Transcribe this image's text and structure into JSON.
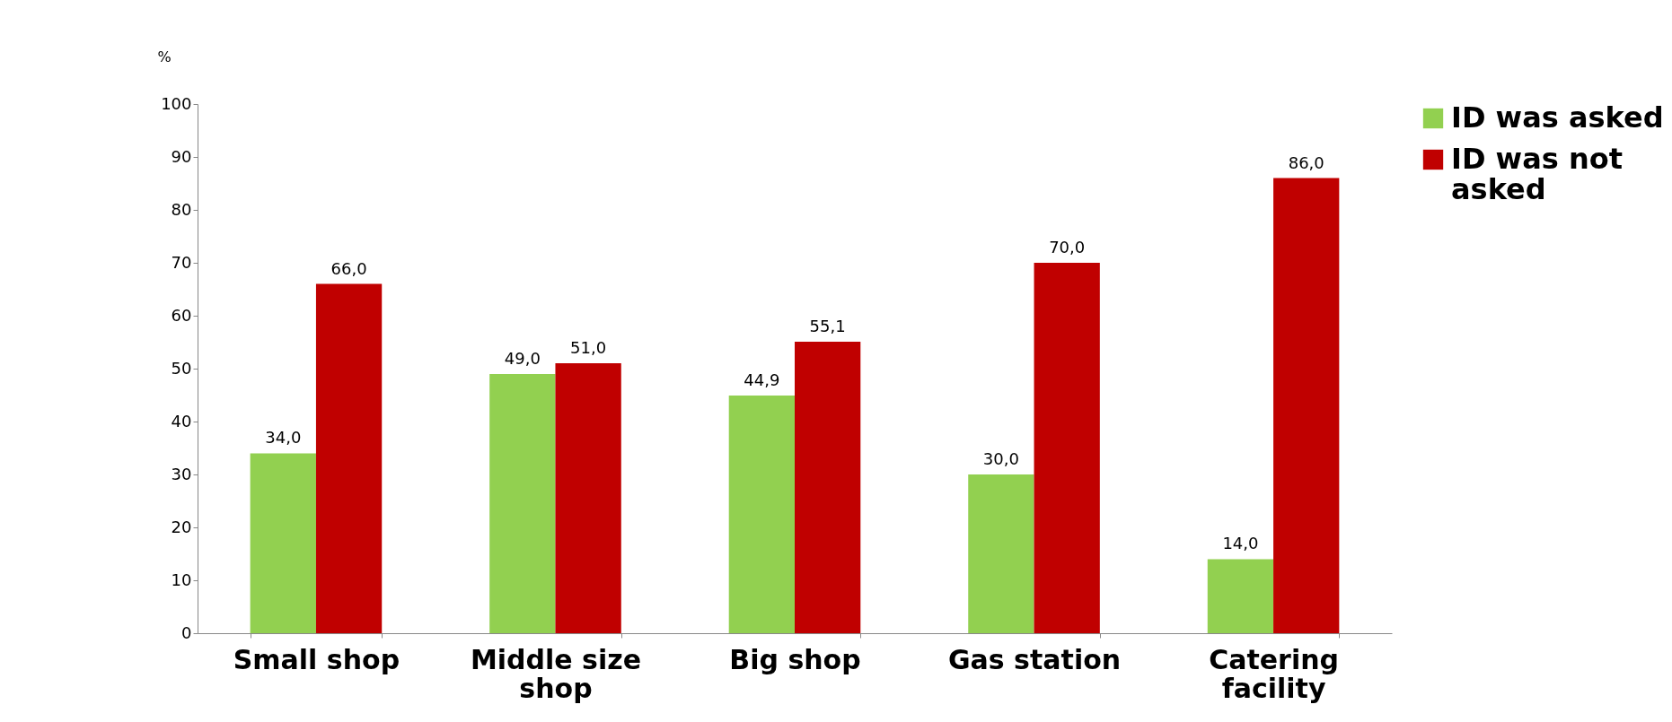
{
  "chart_data": {
    "type": "bar",
    "ylabel": "%",
    "categories": [
      "Small shop",
      "Middle size shop",
      "Big shop",
      "Gas station",
      "Catering facility"
    ],
    "series": [
      {
        "name": "ID was asked",
        "color": "#92d050",
        "values": [
          34.0,
          49.0,
          44.9,
          30.0,
          14.0
        ],
        "value_labels": [
          "34,0",
          "49,0",
          "44,9",
          "30,0",
          "14,0"
        ]
      },
      {
        "name": "ID was not asked",
        "color": "#c00000",
        "values": [
          66.0,
          51.0,
          55.1,
          70.0,
          86.0
        ],
        "value_labels": [
          "66,0",
          "51,0",
          "55,1",
          "70,0",
          "86,0"
        ]
      }
    ],
    "ylim": [
      0,
      100
    ],
    "yticks": [
      0,
      10,
      20,
      30,
      40,
      50,
      60,
      70,
      80,
      90,
      100
    ],
    "grid": false,
    "legend": "right"
  }
}
